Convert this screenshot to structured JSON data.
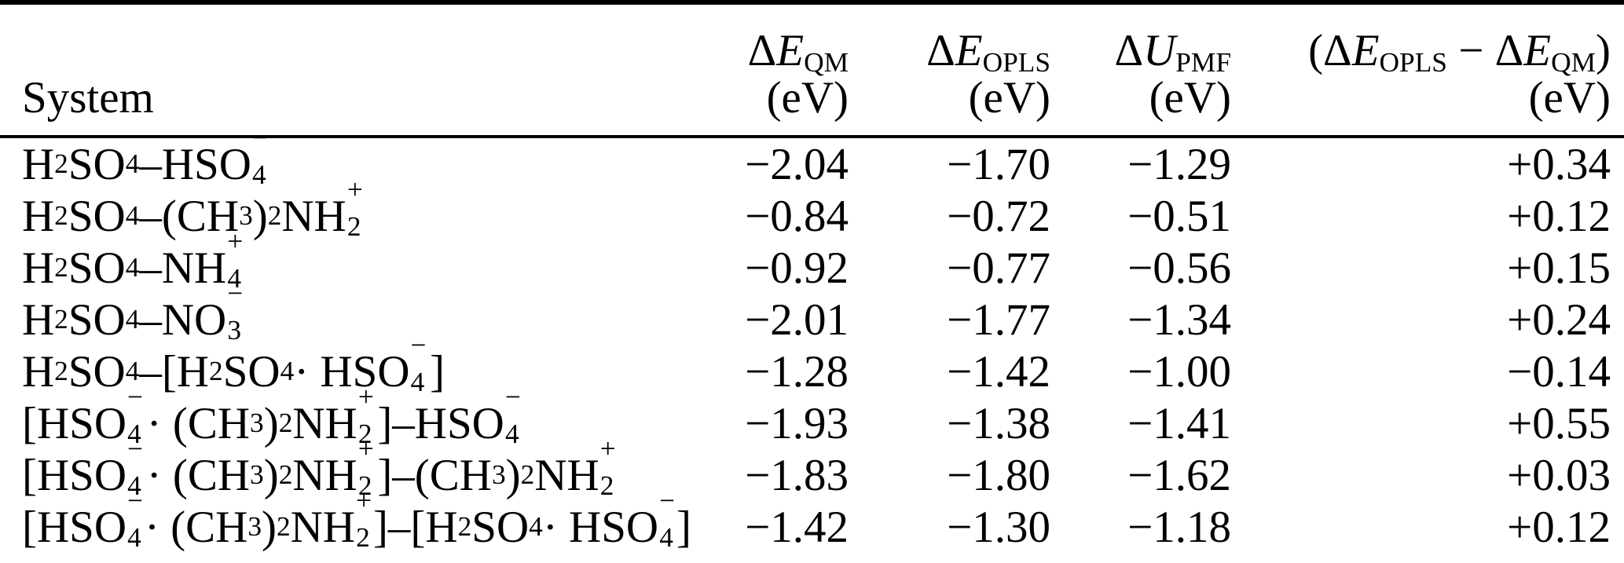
{
  "colors": {
    "text": "#000000",
    "background": "#ffffff",
    "rule": "#000000"
  },
  "table": {
    "header": {
      "system": "System"
    },
    "columns": [
      {
        "formula": "Δ*E*_{QM}",
        "unit": "(eV)"
      },
      {
        "formula": "Δ*E*_{OPLS}",
        "unit": "(eV)"
      },
      {
        "formula": "Δ*U*_{PMF}",
        "unit": "(eV)"
      },
      {
        "formula": "(Δ*E*_{OPLS} − Δ*E*_{QM})",
        "unit": "(eV)"
      }
    ],
    "rows": [
      {
        "system": "H_{2}SO_{4}–HSO%{4}{−}",
        "de_qm": "−2.04",
        "de_opls": "−1.70",
        "du_pmf": "−1.29",
        "diff": "+0.34"
      },
      {
        "system": "H_{2}SO_{4}–(CH_{3})_{2}NH%{2}{+}",
        "de_qm": "−0.84",
        "de_opls": "−0.72",
        "du_pmf": "−0.51",
        "diff": "+0.12"
      },
      {
        "system": "H_{2}SO_{4}–NH%{4}{+}",
        "de_qm": "−0.92",
        "de_opls": "−0.77",
        "du_pmf": "−0.56",
        "diff": "+0.15"
      },
      {
        "system": "H_{2}SO_{4}–NO%{3}{−}",
        "de_qm": "−2.01",
        "de_opls": "−1.77",
        "du_pmf": "−1.34",
        "diff": "+0.24"
      },
      {
        "system": "H_{2}SO_{4}–[H_{2}SO_{4} · HSO%{4}{−}]",
        "de_qm": "−1.28",
        "de_opls": "−1.42",
        "du_pmf": "−1.00",
        "diff": "−0.14"
      },
      {
        "system": "[HSO%{4}{−} · (CH_{3})_{2}NH%{2}{+}]–HSO%{4}{−}",
        "de_qm": "−1.93",
        "de_opls": "−1.38",
        "du_pmf": "−1.41",
        "diff": "+0.55"
      },
      {
        "system": "[HSO%{4}{−} · (CH_{3})_{2}NH%{2}{+}]–(CH_{3})_{2}NH%{2}{+}",
        "de_qm": "−1.83",
        "de_opls": "−1.80",
        "du_pmf": "−1.62",
        "diff": "+0.03"
      },
      {
        "system": "[HSO%{4}{−} · (CH_{3})_{2}NH%{2}{+}]–[H_{2}SO_{4} · HSO%{4}{−}]",
        "de_qm": "−1.42",
        "de_opls": "−1.30",
        "du_pmf": "−1.18",
        "diff": "+0.12"
      }
    ]
  }
}
